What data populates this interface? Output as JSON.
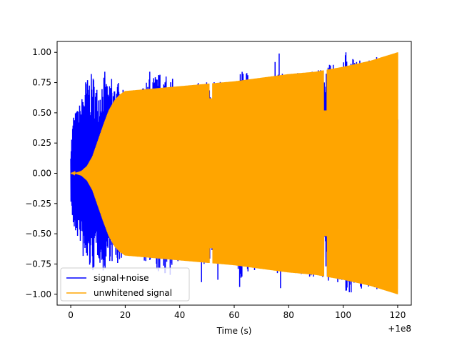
{
  "chart_data": {
    "type": "line",
    "title": "",
    "xlabel": "Time (s)",
    "ylabel": "",
    "x_offset_label": "+1e8",
    "xlim": [
      -5,
      125
    ],
    "ylim": [
      -1.09,
      1.09
    ],
    "xticks": [
      0,
      20,
      40,
      60,
      80,
      100,
      120
    ],
    "yticks": [
      -1.0,
      -0.75,
      -0.5,
      -0.25,
      0.0,
      0.25,
      0.5,
      0.75,
      1.0
    ],
    "ytick_labels": [
      "−1.00",
      "−0.75",
      "−0.50",
      "−0.25",
      "0.00",
      "0.25",
      "0.50",
      "0.75",
      "1.00"
    ],
    "grid": false,
    "legend_position": "lower-left",
    "series": [
      {
        "name": "signal+noise",
        "color": "#0000ff",
        "x_range": [
          0,
          120
        ],
        "envelope": [
          [
            0,
            0.22
          ],
          [
            1,
            0.5
          ],
          [
            2,
            0.52
          ],
          [
            3,
            0.56
          ],
          [
            4,
            0.62
          ],
          [
            5,
            0.78
          ],
          [
            7,
            0.8
          ],
          [
            8,
            0.84
          ],
          [
            10,
            0.7
          ],
          [
            12,
            0.84
          ],
          [
            14,
            0.72
          ],
          [
            17,
            0.78
          ],
          [
            20,
            0.66
          ],
          [
            25,
            0.7
          ],
          [
            30,
            0.82
          ],
          [
            35,
            0.84
          ],
          [
            40,
            0.72
          ],
          [
            50,
            0.76
          ],
          [
            55,
            0.76
          ],
          [
            60,
            0.74
          ],
          [
            62,
            0.88
          ],
          [
            70,
            0.78
          ],
          [
            75,
            0.84
          ],
          [
            80,
            0.82
          ],
          [
            85,
            0.86
          ],
          [
            90,
            0.86
          ],
          [
            95,
            0.9
          ],
          [
            100,
            0.92
          ],
          [
            101,
            1.0
          ],
          [
            110,
            0.95
          ],
          [
            119,
            0.99
          ],
          [
            120,
            0.58
          ]
        ],
        "spikes": [
          {
            "x": 12.5,
            "y": 0.84
          },
          {
            "x": 15,
            "y": 0.78
          },
          {
            "x": 29,
            "y": 0.84
          },
          {
            "x": 35,
            "y": 0.8
          },
          {
            "x": 62,
            "y": -0.94
          },
          {
            "x": 75,
            "y": 0.92
          },
          {
            "x": 76.5,
            "y": 0.99
          },
          {
            "x": 77,
            "y": -0.95
          },
          {
            "x": 101,
            "y": 1.0
          },
          {
            "x": 101,
            "y": -0.97
          },
          {
            "x": 98,
            "y": -0.9
          },
          {
            "x": 48,
            "y": -0.9
          },
          {
            "x": 54,
            "y": -0.88
          },
          {
            "x": 36.5,
            "y": -0.84
          }
        ]
      },
      {
        "name": "unwhitened signal",
        "color": "#ffa500",
        "x_range": [
          0,
          120
        ],
        "envelope": [
          [
            0,
            0.0
          ],
          [
            2,
            0.005
          ],
          [
            4,
            0.02
          ],
          [
            6,
            0.06
          ],
          [
            8,
            0.14
          ],
          [
            10,
            0.27
          ],
          [
            12,
            0.4
          ],
          [
            14,
            0.52
          ],
          [
            16,
            0.6
          ],
          [
            18,
            0.65
          ],
          [
            20,
            0.68
          ],
          [
            30,
            0.7
          ],
          [
            40,
            0.72
          ],
          [
            50,
            0.74
          ],
          [
            60,
            0.76
          ],
          [
            70,
            0.79
          ],
          [
            80,
            0.82
          ],
          [
            90,
            0.84
          ],
          [
            100,
            0.88
          ],
          [
            110,
            0.93
          ],
          [
            120,
            1.0
          ]
        ],
        "dips": [
          {
            "x": 51.5,
            "y": 0.62
          },
          {
            "x": 93.5,
            "y": 0.52
          }
        ]
      }
    ]
  }
}
